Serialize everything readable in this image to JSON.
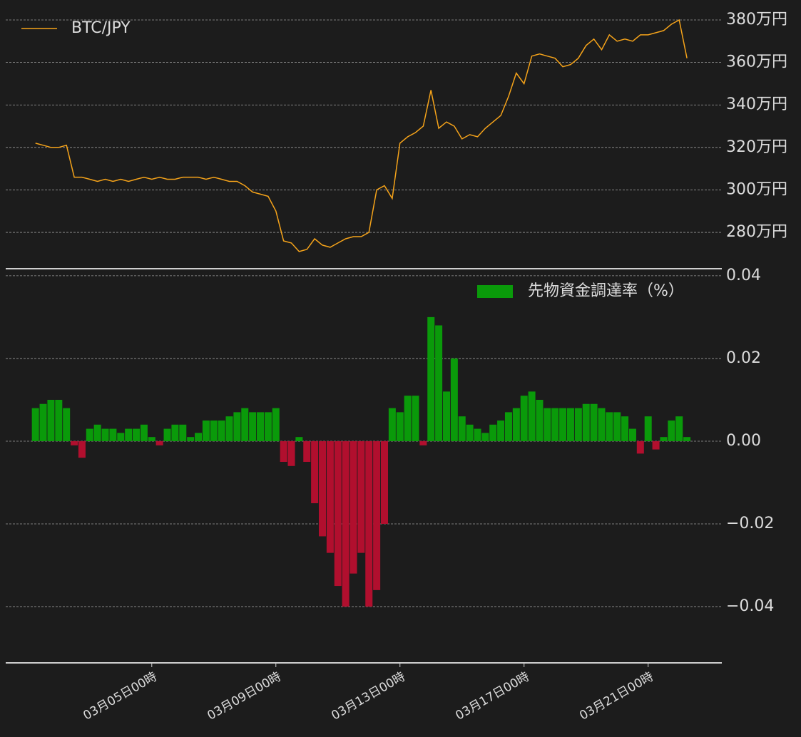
{
  "chart_data": [
    {
      "type": "line",
      "series": [
        {
          "name": "BTC/JPY",
          "color": "#f5a31a",
          "values": [
            3220000,
            3210000,
            3200000,
            3200000,
            3210000,
            3060000,
            3060000,
            3050000,
            3040000,
            3050000,
            3040000,
            3050000,
            3040000,
            3050000,
            3060000,
            3050000,
            3060000,
            3050000,
            3050000,
            3060000,
            3060000,
            3060000,
            3050000,
            3060000,
            3050000,
            3040000,
            3040000,
            3020000,
            2990000,
            2980000,
            2970000,
            2900000,
            2760000,
            2750000,
            2710000,
            2720000,
            2770000,
            2740000,
            2730000,
            2750000,
            2770000,
            2780000,
            2780000,
            2800000,
            3000000,
            3020000,
            2960000,
            3220000,
            3250000,
            3270000,
            3300000,
            3470000,
            3290000,
            3320000,
            3300000,
            3240000,
            3260000,
            3250000,
            3290000,
            3320000,
            3350000,
            3440000,
            3550000,
            3500000,
            3630000,
            3640000,
            3630000,
            3620000,
            3580000,
            3590000,
            3620000,
            3680000,
            3710000,
            3660000,
            3730000,
            3700000,
            3710000,
            3700000,
            3730000,
            3730000,
            3740000,
            3750000,
            3780000,
            3800000,
            3620000
          ]
        }
      ],
      "x": [
        "03月01日06時",
        "03月01日12時",
        "03月01日18時",
        "03月02日00時",
        "03月02日06時",
        "03月02日12時",
        "03月02日18時",
        "03月03日00時",
        "03月03日06時",
        "03月03日12時",
        "03月03日18時",
        "03月04日00時",
        "03月04日06時",
        "03月04日12時",
        "03月04日18時",
        "03月05日00時",
        "03月05日06時",
        "03月05日12時",
        "03月05日18時",
        "03月06日00時",
        "03月06日06時",
        "03月06日12時",
        "03月06日18時",
        "03月07日00時",
        "03月07日06時",
        "03月07日12時",
        "03月07日18時",
        "03月08日00時",
        "03月08日06時",
        "03月08日12時",
        "03月08日18時",
        "03月09日00時",
        "03月09日06時",
        "03月09日12時",
        "03月09日18時",
        "03月10日00時",
        "03月10日06時",
        "03月10日12時",
        "03月10日18時",
        "03月11日00時",
        "03月11日06時",
        "03月11日12時",
        "03月11日18時",
        "03月12日00時",
        "03月12日06時",
        "03月12日12時",
        "03月12日18時",
        "03月13日00時",
        "03月13日06時",
        "03月13日12時",
        "03月13日18時",
        "03月14日00時",
        "03月14日06時",
        "03月14日12時",
        "03月14日18時",
        "03月15日00時",
        "03月15日06時",
        "03月15日12時",
        "03月15日18時",
        "03月16日00時",
        "03月16日06時",
        "03月16日12時",
        "03月16日18時",
        "03月17日00時",
        "03月17日06時",
        "03月17日12時",
        "03月17日18時",
        "03月18日00時",
        "03月18日06時",
        "03月18日12時",
        "03月18日18時",
        "03月19日00時",
        "03月19日06時",
        "03月19日12時",
        "03月19日18時",
        "03月20日00時",
        "03月20日06時",
        "03月20日12時",
        "03月20日18時",
        "03月21日00時",
        "03月21日06時",
        "03月21日12時",
        "03月21日18時",
        "03月22日00時",
        "03月22日06時"
      ],
      "xlim": [
        "02月29日07時",
        "03月23日09時"
      ],
      "ylim": [
        2629000,
        3894000
      ],
      "yticks": [
        {
          "value": 2800000,
          "label": "280万円"
        },
        {
          "value": 3000000,
          "label": "300万円"
        },
        {
          "value": 3200000,
          "label": "320万円"
        },
        {
          "value": 3400000,
          "label": "340万円"
        },
        {
          "value": 3600000,
          "label": "360万円"
        },
        {
          "value": 3800000,
          "label": "380万円"
        }
      ],
      "grid": true,
      "legend": "upper left"
    },
    {
      "type": "bar",
      "series": [
        {
          "name": "先物資金調達率（%）",
          "color": "#0a9a0a",
          "negative_color": "#b10f2e",
          "values": [
            0.008,
            0.009,
            0.01,
            0.01,
            0.008,
            -0.001,
            -0.004,
            0.003,
            0.004,
            0.003,
            0.003,
            0.002,
            0.003,
            0.003,
            0.004,
            0.001,
            -0.001,
            0.003,
            0.004,
            0.004,
            0.001,
            0.002,
            0.005,
            0.005,
            0.005,
            0.006,
            0.007,
            0.008,
            0.007,
            0.007,
            0.007,
            0.008,
            -0.005,
            -0.006,
            0.001,
            -0.005,
            -0.015,
            -0.023,
            -0.027,
            -0.035,
            -0.04,
            -0.032,
            -0.027,
            -0.04,
            -0.036,
            -0.02,
            0.008,
            0.007,
            0.011,
            0.011,
            -0.001,
            0.03,
            0.028,
            0.012,
            0.02,
            0.006,
            0.004,
            0.003,
            0.002,
            0.004,
            0.005,
            0.007,
            0.008,
            0.011,
            0.012,
            0.01,
            0.008,
            0.008,
            0.008,
            0.008,
            0.008,
            0.009,
            0.009,
            0.008,
            0.007,
            0.007,
            0.006,
            0.003,
            -0.003,
            0.006,
            -0.002,
            0.001,
            0.005,
            0.006,
            0.001
          ]
        }
      ],
      "x": [
        "03月01日06時",
        "03月01日12時",
        "03月01日18時",
        "03月02日00時",
        "03月02日06時",
        "03月02日12時",
        "03月02日18時",
        "03月03日00時",
        "03月03日06時",
        "03月03日12時",
        "03月03日18時",
        "03月04日00時",
        "03月04日06時",
        "03月04日12時",
        "03月04日18時",
        "03月05日00時",
        "03月05日06時",
        "03月05日12時",
        "03月05日18時",
        "03月06日00時",
        "03月06日06時",
        "03月06日12時",
        "03月06日18時",
        "03月07日00時",
        "03月07日06時",
        "03月07日12時",
        "03月07日18時",
        "03月08日00時",
        "03月08日06時",
        "03月08日12時",
        "03月08日18時",
        "03月09日00時",
        "03月09日06時",
        "03月09日12時",
        "03月09日18時",
        "03月10日00時",
        "03月10日06時",
        "03月10日12時",
        "03月10日18時",
        "03月11日00時",
        "03月11日06時",
        "03月11日12時",
        "03月11日18時",
        "03月12日00時",
        "03月12日06時",
        "03月12日12時",
        "03月12日18時",
        "03月13日00時",
        "03月13日06時",
        "03月13日12時",
        "03月13日18時",
        "03月14日00時",
        "03月14日06時",
        "03月14日12時",
        "03月14日18時",
        "03月15日00時",
        "03月15日06時",
        "03月15日12時",
        "03月15日18時",
        "03月16日00時",
        "03月16日06時",
        "03月16日12時",
        "03月16日18時",
        "03月17日00時",
        "03月17日06時",
        "03月17日12時",
        "03月17日18時",
        "03月18日00時",
        "03月18日06時",
        "03月18日12時",
        "03月18日18時",
        "03月19日00時",
        "03月19日06時",
        "03月19日12時",
        "03月19日18時",
        "03月20日00時",
        "03月20日06時",
        "03月20日12時",
        "03月20日18時",
        "03月21日00時",
        "03月21日06時",
        "03月21日12時",
        "03月21日18時",
        "03月22日00時",
        "03月22日06時"
      ],
      "xlim": [
        "02月29日07時",
        "03月23日09時"
      ],
      "xticks": [
        "03月05日00時",
        "03月09日00時",
        "03月13日00時",
        "03月17日00時",
        "03月21日00時"
      ],
      "ylim": [
        -0.0536,
        0.0417
      ],
      "yticks": [
        {
          "value": -0.04,
          "label": "−0.04"
        },
        {
          "value": -0.02,
          "label": "−0.02"
        },
        {
          "value": 0,
          "label": "0.00"
        },
        0.02,
        0.04
      ],
      "grid": true,
      "legend": "upper right"
    }
  ]
}
